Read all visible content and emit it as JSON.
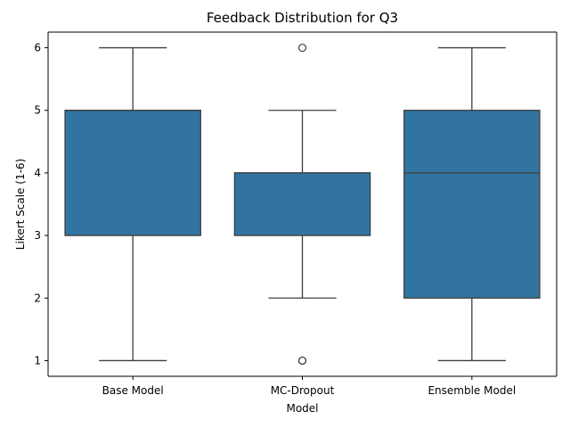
{
  "chart_data": {
    "type": "box",
    "title": "Feedback Distribution for Q3",
    "xlabel": "Model",
    "ylabel": "Likert Scale (1-6)",
    "ylim": [
      0.75,
      6.25
    ],
    "yticks": [
      1,
      2,
      3,
      4,
      5,
      6
    ],
    "categories": [
      "Base Model",
      "MC-Dropout",
      "Ensemble Model"
    ],
    "boxes": [
      {
        "category": "Base Model",
        "whisker_low": 1,
        "q1": 3,
        "median": 5,
        "q3": 5,
        "whisker_high": 6,
        "outliers": []
      },
      {
        "category": "MC-Dropout",
        "whisker_low": 2,
        "q1": 3,
        "median": 4,
        "q3": 4,
        "whisker_high": 5,
        "outliers": [
          6,
          1,
          1
        ]
      },
      {
        "category": "Ensemble Model",
        "whisker_low": 1,
        "q1": 2,
        "median": 4,
        "q3": 5,
        "whisker_high": 6,
        "outliers": []
      }
    ],
    "box_color": "#3274a1",
    "line_color": "#3f3f3f",
    "grid": false,
    "legend": "none"
  }
}
